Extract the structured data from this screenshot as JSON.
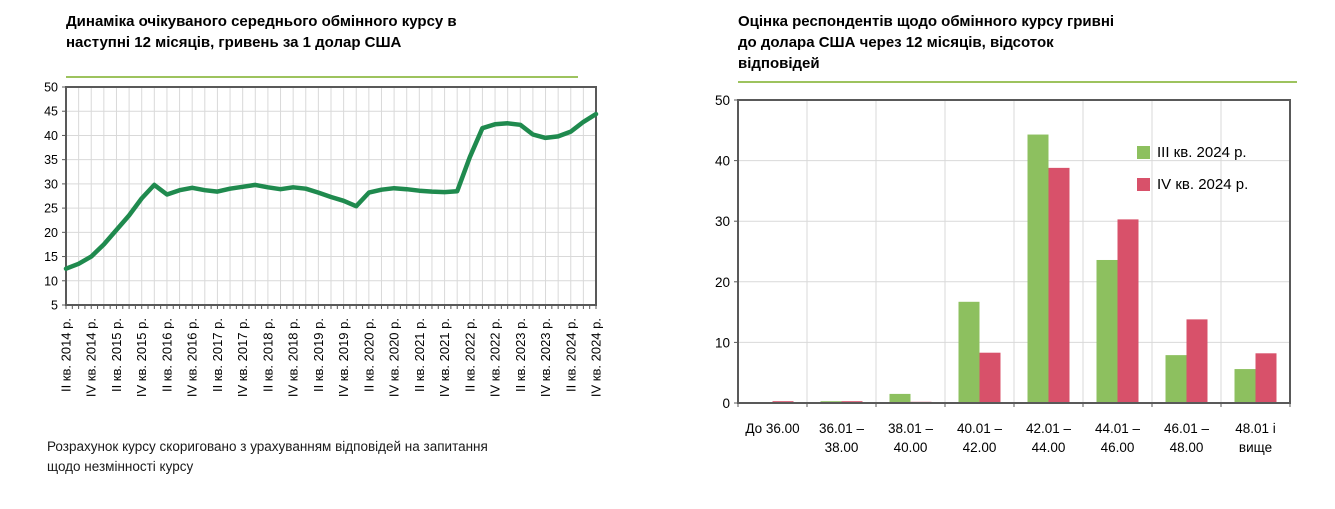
{
  "left": {
    "title_lines": [
      "Динаміка очікуваного середнього обмінного курсу в",
      "наступні 12 місяців, гривень за 1 долар США"
    ],
    "footnote_lines": [
      "Розрахунок курсу скориговано з урахуванням відповідей на запитання",
      "щодо незмінності курсу"
    ]
  },
  "right": {
    "title_lines": [
      "Оцінка респондентів щодо обмінного курсу гривні",
      "до долара США через 12 місяців, відсоток",
      "відповідей"
    ]
  },
  "colors": {
    "rule_green": "#9dc35e",
    "line_green": "#1f8a4e",
    "bar_green": "#8dc05f",
    "bar_red": "#d8516a",
    "axis_gray": "#595959",
    "grid_gray": "#d9d9d9"
  },
  "chart_data": [
    {
      "type": "line",
      "title": "Динаміка очікуваного середнього обмінного курсу в наступні 12 місяців, гривень за 1 долар США",
      "ylabel": "гривень за 1 долар США",
      "ylim": [
        5,
        50
      ],
      "y_ticks": [
        5,
        10,
        15,
        20,
        25,
        30,
        35,
        40,
        45,
        50
      ],
      "grid": true,
      "line_color": "#1f8a4e",
      "points_per_label": 2,
      "x_tick_labels": [
        "II кв. 2014 р.",
        "IV кв. 2014 р.",
        "II кв. 2015 р.",
        "IV кв. 2015 р.",
        "II кв. 2016 р.",
        "IV кв. 2016 р.",
        "II кв. 2017 р.",
        "IV кв. 2017 р.",
        "II кв. 2018 р.",
        "IV кв. 2018 р.",
        "II кв. 2019 р.",
        "IV кв. 2019 р.",
        "II кв. 2020 р.",
        "IV кв. 2020 р.",
        "II кв. 2021 р.",
        "IV кв. 2021 р.",
        "II кв. 2022 р.",
        "IV кв. 2022 р.",
        "II кв. 2023 р.",
        "IV кв. 2023 р.",
        "II кв. 2024 р.",
        "IV кв. 2024 р."
      ],
      "values": [
        12.5,
        13.5,
        15,
        17.5,
        20.5,
        23.5,
        27,
        29.8,
        27.8,
        28.7,
        29.2,
        28.7,
        28.4,
        29,
        29.4,
        29.8,
        29.3,
        28.9,
        29.3,
        29,
        28.2,
        27.3,
        26.5,
        25.4,
        28.2,
        28.8,
        29.1,
        28.9,
        28.6,
        28.4,
        28.3,
        28.5,
        35.5,
        41.5,
        42.3,
        42.5,
        42.2,
        40.2,
        39.5,
        39.8,
        40.8,
        42.8,
        44.4
      ]
    },
    {
      "type": "bar",
      "title": "Оцінка респондентів щодо обмінного курсу гривні до долара США через 12 місяців, відсоток відповідей",
      "ylabel": "відсоток відповідей",
      "ylim": [
        0,
        50
      ],
      "y_ticks": [
        0,
        10,
        20,
        30,
        40,
        50
      ],
      "grid": true,
      "legend_position": "top-right",
      "categories": [
        [
          "До 36.00"
        ],
        [
          "36.01 –",
          "38.00"
        ],
        [
          "38.01 –",
          "40.00"
        ],
        [
          "40.01 –",
          "42.00"
        ],
        [
          "42.01 –",
          "44.00"
        ],
        [
          "44.01 –",
          "46.00"
        ],
        [
          "46.01 –",
          "48.00"
        ],
        [
          "48.01 і",
          "вище"
        ]
      ],
      "series": [
        {
          "name": "III кв. 2024 р.",
          "color": "#8dc05f",
          "values": [
            0.1,
            0.3,
            1.5,
            16.7,
            44.3,
            23.6,
            7.9,
            5.6
          ]
        },
        {
          "name": "IV кв. 2024 р.",
          "color": "#d8516a",
          "values": [
            0.3,
            0.3,
            0.2,
            8.3,
            38.8,
            30.3,
            13.8,
            8.2
          ]
        }
      ]
    }
  ]
}
